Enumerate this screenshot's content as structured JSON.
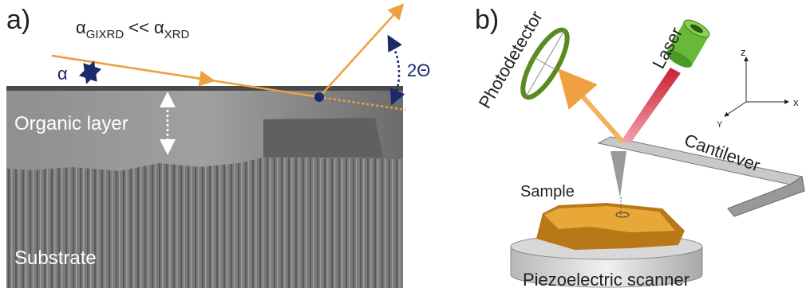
{
  "panel_a": {
    "label": "a)",
    "equation": {
      "left_symbol": "α",
      "left_subscript": "GIXRD",
      "operator": "<<",
      "right_symbol": "α",
      "right_subscript": "XRD"
    },
    "incidence_angle": "α",
    "scattering_angle": "2Θ",
    "layer_label": "Organic layer",
    "substrate_label": "Substrate"
  },
  "panel_b": {
    "label": "b)",
    "photodetector": "Photodetector",
    "laser": "Laser",
    "cantilever": "Cantilever",
    "sample": "Sample",
    "scanner": "Piezoelectric scanner",
    "axes": {
      "z": "z",
      "x": "x",
      "y": "Y"
    }
  }
}
